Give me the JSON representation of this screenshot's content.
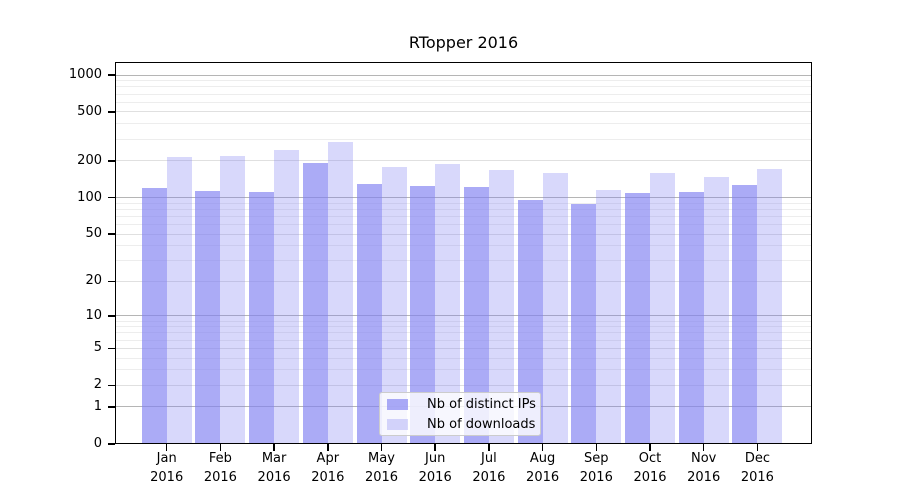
{
  "title": "RTopper 2016",
  "chart_data": {
    "type": "bar",
    "title": "RTopper 2016",
    "categories": [
      "Jan",
      "Feb",
      "Mar",
      "Apr",
      "May",
      "Jun",
      "Jul",
      "Aug",
      "Sep",
      "Oct",
      "Nov",
      "Dec"
    ],
    "year_label": "2016",
    "series": [
      {
        "name": "Nb of distinct IPs",
        "color": "rgba(127,127,242,0.66)",
        "values": [
          120,
          114,
          111,
          190,
          130,
          124,
          122,
          95,
          88,
          108,
          112,
          127
        ]
      },
      {
        "name": "Nb of downloads",
        "color": "rgba(127,127,242,0.30)",
        "values": [
          215,
          218,
          245,
          285,
          177,
          187,
          168,
          160,
          115,
          158,
          148,
          170
        ]
      }
    ],
    "xlabel": "",
    "ylabel": "",
    "yscale": "log1p",
    "ylim": [
      0,
      1276
    ],
    "yticks": [
      0,
      1,
      2,
      5,
      10,
      20,
      50,
      100,
      200,
      500,
      1000
    ],
    "emphasized_gridlines": [
      1,
      10,
      100,
      1000
    ],
    "tick_gridlines": [
      2,
      5,
      20,
      50,
      200,
      500
    ],
    "minor_gridlines": [
      3,
      4,
      6,
      7,
      8,
      9,
      30,
      40,
      60,
      70,
      80,
      90,
      300,
      400,
      600,
      700,
      800,
      900
    ],
    "grid": true,
    "legend_position": "lower center"
  },
  "legend": {
    "items": [
      {
        "label": "Nb of distinct IPs",
        "color": "rgba(127,127,242,0.66)"
      },
      {
        "label": "Nb of downloads",
        "color": "rgba(127,127,242,0.30)"
      }
    ]
  },
  "colors": {
    "grid_emphasized": "#b5b5b5",
    "grid_tick": "#e0e0e0",
    "grid_minor": "#ededed",
    "axis": "#000000",
    "background": "#ffffff"
  }
}
